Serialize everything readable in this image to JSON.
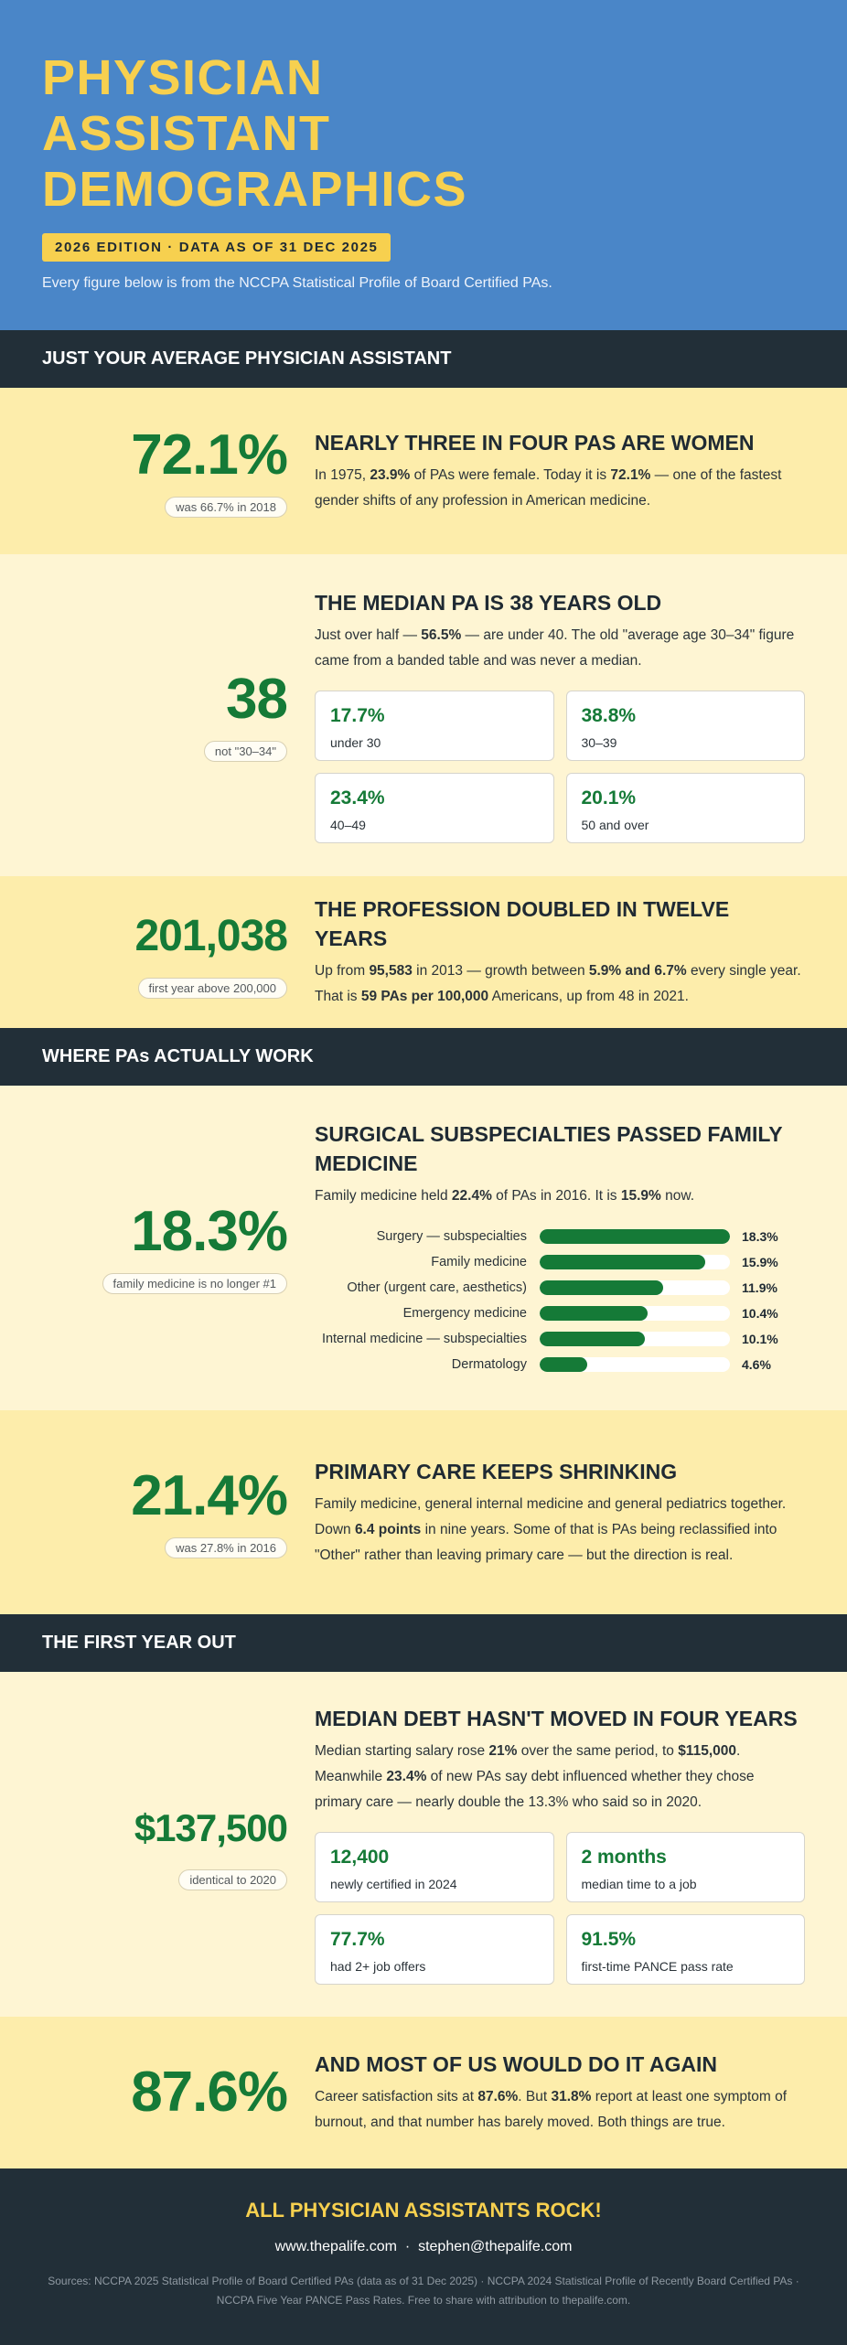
{
  "header": {
    "title_lines": [
      "PHYSICIAN",
      "ASSISTANT",
      "DEMOGRAPHICS"
    ],
    "edition": "2026 EDITION · DATA AS OF 31 DEC 2025",
    "subtitle": "Every figure below is from the NCCPA Statistical Profile of Board Certified PAs."
  },
  "section_bars": {
    "average": "JUST YOUR AVERAGE PHYSICIAN ASSISTANT",
    "work": "WHERE PAs ACTUALLY WORK",
    "first_year": "THE FIRST YEAR OUT"
  },
  "women": {
    "stat": "72.1%",
    "note": "was 66.7% in 2018",
    "heading": "NEARLY THREE IN FOUR PAS ARE WOMEN",
    "body": [
      "In 1975, ",
      "23.9%",
      " of PAs were female. Today it is ",
      "72.1%",
      " — one of the fastest gender shifts of any profession in American medicine."
    ]
  },
  "age": {
    "stat": "38",
    "note": "not \"30–34\"",
    "heading": "THE MEDIAN PA IS 38 YEARS OLD",
    "body": [
      "Just over half — ",
      "56.5%",
      " — are under 40. The old \"average age 30–34\" figure came from a banded table and was never a median."
    ],
    "cards": [
      {
        "value": "17.7%",
        "label": "under 30"
      },
      {
        "value": "38.8%",
        "label": "30–39"
      },
      {
        "value": "23.4%",
        "label": "40–49"
      },
      {
        "value": "20.1%",
        "label": "50 and over"
      }
    ]
  },
  "growth": {
    "stat": "201,038",
    "note": "first year above 200,000",
    "heading": "THE PROFESSION DOUBLED IN TWELVE YEARS",
    "body": [
      "Up from ",
      "95,583",
      " in 2013 — growth between ",
      "5.9% and 6.7%",
      " every single year. That is ",
      "59 PAs per 100,000",
      " Americans, up from 48 in 2021."
    ]
  },
  "specialties": {
    "stat": "18.3%",
    "note": "family medicine is no longer #1",
    "heading": "SURGICAL SUBSPECIALTIES PASSED FAMILY MEDICINE",
    "body": [
      "Family medicine held ",
      "22.4%",
      " of PAs in 2016. It is ",
      "15.9%",
      " now."
    ],
    "chart_data": {
      "type": "bar",
      "orientation": "horizontal",
      "categories": [
        "Surgery — subspecialties",
        "Family medicine",
        "Other (urgent care, aesthetics)",
        "Emergency medicine",
        "Internal medicine — subspecialties",
        "Dermatology"
      ],
      "values": [
        18.3,
        15.9,
        11.9,
        10.4,
        10.1,
        4.6
      ],
      "value_labels": [
        "18.3%",
        "15.9%",
        "11.9%",
        "10.4%",
        "10.1%",
        "4.6%"
      ],
      "xlim": [
        0,
        18.3
      ],
      "grid": false,
      "bar_color": "#157a37",
      "track_color": "#ffffff"
    }
  },
  "primary_care": {
    "stat": "21.4%",
    "note": "was 27.8% in 2016",
    "heading": "PRIMARY CARE KEEPS SHRINKING",
    "body": [
      "Family medicine, general internal medicine and general pediatrics together. Down ",
      "6.4 points",
      " in nine years. Some of that is PAs being reclassified into \"Other\" rather than leaving primary care — but the direction is real."
    ]
  },
  "debt": {
    "stat": "$137,500",
    "note": "identical to 2020",
    "heading": "MEDIAN DEBT HASN'T MOVED IN FOUR YEARS",
    "body": [
      "Median starting salary rose ",
      "21%",
      " over the same period, to ",
      "$115,000",
      ". Meanwhile ",
      "23.4%",
      " of new PAs say debt influenced whether they chose primary care — nearly double the 13.3% who said so in 2020."
    ],
    "cards": [
      {
        "value": "12,400",
        "label": "newly certified in 2024"
      },
      {
        "value": "2 months",
        "label": "median time to a job"
      },
      {
        "value": "77.7%",
        "label": "had 2+ job offers"
      },
      {
        "value": "91.5%",
        "label": "first-time PANCE pass rate"
      }
    ]
  },
  "satisfaction": {
    "stat": "87.6%",
    "heading": "AND MOST OF US WOULD DO IT AGAIN",
    "body": [
      "Career satisfaction sits at ",
      "87.6%",
      ". But ",
      "31.8%",
      " report at least one symptom of burnout, and that number has barely moved. Both things are true."
    ]
  },
  "footer": {
    "tagline": "ALL PHYSICIAN ASSISTANTS ROCK!",
    "website": "www.thepalife.com",
    "separator": "·",
    "email": "stephen@thepalife.com",
    "sources": "Sources: NCCPA 2025 Statistical Profile of Board Certified PAs (data as of 31 Dec 2025) · NCCPA 2024 Statistical Profile of Recently Board Certified PAs · NCCPA Five Year PANCE Pass Rates. Free to share with attribution to thepalife.com."
  },
  "colors": {
    "header_bg": "#4a86c8",
    "accent_yellow": "#f7d04f",
    "dark_bar": "#222f38",
    "stat_green": "#157a37",
    "section_a": "#fdedab",
    "section_b": "#fef5d3"
  }
}
